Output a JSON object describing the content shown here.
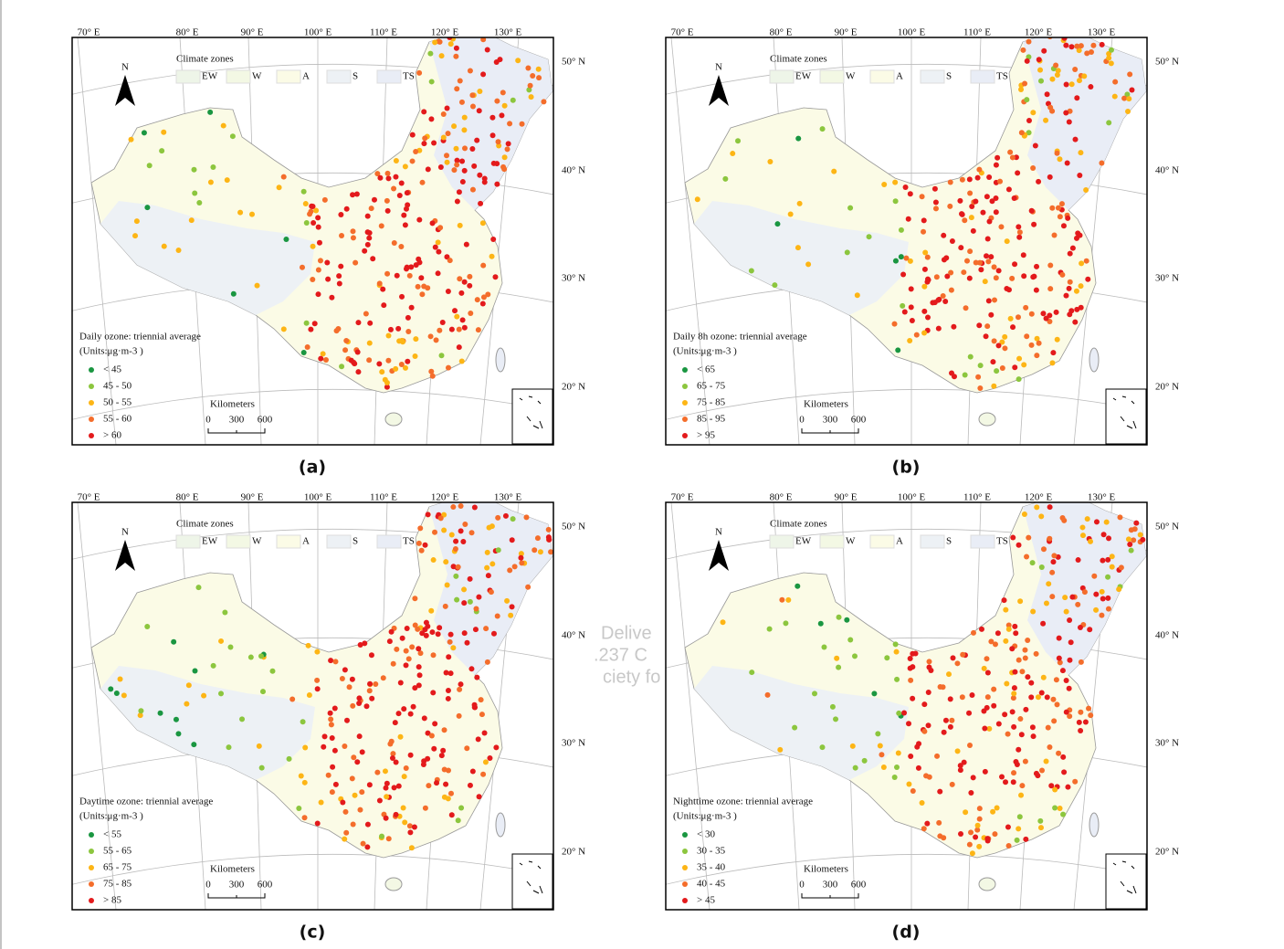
{
  "panels": [
    {
      "label": "(a)",
      "legend_title": "Daily ozone: triennial average",
      "legend_units": "(Units:μg·m-3 )",
      "classes": [
        {
          "label": "< 45",
          "color": "#1a9641"
        },
        {
          "label": "45 - 50",
          "color": "#8cc63e"
        },
        {
          "label": "50 - 55",
          "color": "#fdb515"
        },
        {
          "label": "55 - 60",
          "color": "#f46d2b"
        },
        {
          "label": "> 60",
          "color": "#e31a1c"
        }
      ]
    },
    {
      "label": "(b)",
      "legend_title": "Daily 8h ozone: triennial average",
      "legend_units": "(Units:μg·m-3 )",
      "classes": [
        {
          "label": "< 65",
          "color": "#1a9641"
        },
        {
          "label": "65 - 75",
          "color": "#8cc63e"
        },
        {
          "label": "75 - 85",
          "color": "#fdb515"
        },
        {
          "label": "85 - 95",
          "color": "#f46d2b"
        },
        {
          "label": "> 95",
          "color": "#e31a1c"
        }
      ]
    },
    {
      "label": "(c)",
      "legend_title": "Daytime ozone: triennial average",
      "legend_units": "(Units:μg·m-3 )",
      "classes": [
        {
          "label": "< 55",
          "color": "#1a9641"
        },
        {
          "label": "55 - 65",
          "color": "#8cc63e"
        },
        {
          "label": "65 - 75",
          "color": "#fdb515"
        },
        {
          "label": "75 - 85",
          "color": "#f46d2b"
        },
        {
          "label": "> 85",
          "color": "#e31a1c"
        }
      ]
    },
    {
      "label": "(d)",
      "legend_title": "Nighttime ozone: triennial average",
      "legend_units": "(Units:μg·m-3 )",
      "classes": [
        {
          "label": "< 30",
          "color": "#1a9641"
        },
        {
          "label": "30 - 35",
          "color": "#8cc63e"
        },
        {
          "label": "35 - 40",
          "color": "#fdb515"
        },
        {
          "label": "40 - 45",
          "color": "#f46d2b"
        },
        {
          "label": "> 45",
          "color": "#e31a1c"
        }
      ]
    }
  ],
  "climate_zones": {
    "title": "Climate zones",
    "zones": [
      {
        "label": "EW",
        "color": "#eef5e8"
      },
      {
        "label": "W",
        "color": "#f3f8e4"
      },
      {
        "label": "A",
        "color": "#fbfbe6"
      },
      {
        "label": "S",
        "color": "#edf1f5"
      },
      {
        "label": "TS",
        "color": "#e9edf6"
      }
    ]
  },
  "north": "N",
  "scale": {
    "title": "Kilometers",
    "ticks": [
      "0",
      "300",
      "600"
    ]
  },
  "lon_labels": [
    "70° E",
    "80° E",
    "90° E",
    "100° E",
    "110° E",
    "120° E",
    "130° E"
  ],
  "lat_labels": [
    "50° N",
    "40° N",
    "30° N",
    "20° N"
  ],
  "watermark": [
    "Delive",
    ".237 C",
    "ciety fo"
  ]
}
